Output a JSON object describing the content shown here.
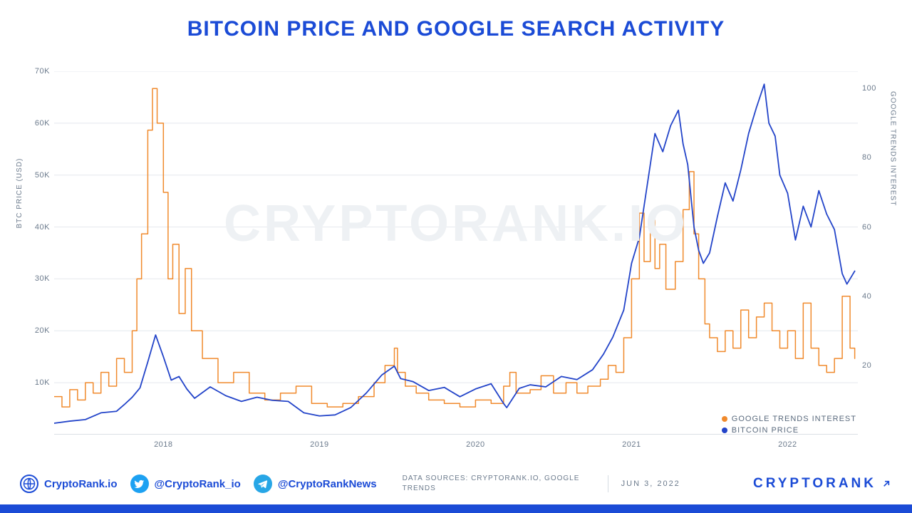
{
  "title": {
    "text": "BITCOIN PRICE AND GOOGLE SEARCH ACTIVITY",
    "color": "#1b4bd6",
    "fontsize": 30
  },
  "chart": {
    "type": "dual-axis-line",
    "watermark": "CRYPTORANK.IO",
    "background": "#ffffff",
    "grid_color": "#e4e8ed",
    "x_range": [
      2017.3,
      2022.45
    ],
    "x_ticks": [
      2018,
      2019,
      2020,
      2021,
      2022
    ],
    "y_left": {
      "label": "BTC PRICE (USD)",
      "min": 0,
      "max": 70000,
      "ticks": [
        10000,
        20000,
        30000,
        40000,
        50000,
        60000,
        70000
      ],
      "tick_labels": [
        "10K",
        "20K",
        "30K",
        "40K",
        "50K",
        "60K",
        "70K"
      ]
    },
    "y_right": {
      "label": "GOOGLE TRENDS INTEREST",
      "min": 0,
      "max": 105,
      "ticks": [
        20,
        40,
        60,
        80,
        100
      ]
    },
    "series": {
      "google_trends": {
        "label": "GOOGLE TRENDS INTEREST",
        "color": "#f08a2c",
        "line_width": 1.5,
        "step": true,
        "axis": "right",
        "points": [
          [
            2017.3,
            11
          ],
          [
            2017.35,
            8
          ],
          [
            2017.4,
            13
          ],
          [
            2017.45,
            10
          ],
          [
            2017.5,
            15
          ],
          [
            2017.55,
            12
          ],
          [
            2017.6,
            18
          ],
          [
            2017.65,
            14
          ],
          [
            2017.7,
            22
          ],
          [
            2017.75,
            18
          ],
          [
            2017.8,
            30
          ],
          [
            2017.83,
            45
          ],
          [
            2017.86,
            58
          ],
          [
            2017.9,
            88
          ],
          [
            2017.93,
            100
          ],
          [
            2017.96,
            90
          ],
          [
            2018.0,
            70
          ],
          [
            2018.03,
            45
          ],
          [
            2018.06,
            55
          ],
          [
            2018.1,
            35
          ],
          [
            2018.14,
            48
          ],
          [
            2018.18,
            30
          ],
          [
            2018.25,
            22
          ],
          [
            2018.35,
            15
          ],
          [
            2018.45,
            18
          ],
          [
            2018.55,
            12
          ],
          [
            2018.65,
            10
          ],
          [
            2018.75,
            12
          ],
          [
            2018.85,
            14
          ],
          [
            2018.95,
            9
          ],
          [
            2019.05,
            8
          ],
          [
            2019.15,
            9
          ],
          [
            2019.25,
            11
          ],
          [
            2019.35,
            15
          ],
          [
            2019.42,
            20
          ],
          [
            2019.48,
            25
          ],
          [
            2019.5,
            18
          ],
          [
            2019.55,
            14
          ],
          [
            2019.62,
            12
          ],
          [
            2019.7,
            10
          ],
          [
            2019.8,
            9
          ],
          [
            2019.9,
            8
          ],
          [
            2020.0,
            10
          ],
          [
            2020.1,
            9
          ],
          [
            2020.18,
            14
          ],
          [
            2020.22,
            18
          ],
          [
            2020.26,
            12
          ],
          [
            2020.35,
            13
          ],
          [
            2020.42,
            17
          ],
          [
            2020.5,
            12
          ],
          [
            2020.58,
            15
          ],
          [
            2020.65,
            12
          ],
          [
            2020.72,
            14
          ],
          [
            2020.8,
            16
          ],
          [
            2020.85,
            20
          ],
          [
            2020.9,
            18
          ],
          [
            2020.95,
            28
          ],
          [
            2021.0,
            45
          ],
          [
            2021.05,
            64
          ],
          [
            2021.08,
            50
          ],
          [
            2021.12,
            62
          ],
          [
            2021.15,
            48
          ],
          [
            2021.18,
            55
          ],
          [
            2021.22,
            42
          ],
          [
            2021.28,
            50
          ],
          [
            2021.33,
            65
          ],
          [
            2021.37,
            76
          ],
          [
            2021.4,
            58
          ],
          [
            2021.43,
            45
          ],
          [
            2021.47,
            32
          ],
          [
            2021.5,
            28
          ],
          [
            2021.55,
            24
          ],
          [
            2021.6,
            30
          ],
          [
            2021.65,
            25
          ],
          [
            2021.7,
            36
          ],
          [
            2021.75,
            28
          ],
          [
            2021.8,
            34
          ],
          [
            2021.85,
            38
          ],
          [
            2021.9,
            30
          ],
          [
            2021.95,
            25
          ],
          [
            2022.0,
            30
          ],
          [
            2022.05,
            22
          ],
          [
            2022.1,
            38
          ],
          [
            2022.15,
            25
          ],
          [
            2022.2,
            20
          ],
          [
            2022.25,
            18
          ],
          [
            2022.3,
            22
          ],
          [
            2022.35,
            40
          ],
          [
            2022.4,
            25
          ],
          [
            2022.43,
            22
          ]
        ]
      },
      "btc_price": {
        "label": "BITCOIN PRICE",
        "color": "#2344c9",
        "line_width": 1.8,
        "step": false,
        "axis": "left",
        "points": [
          [
            2017.3,
            2200
          ],
          [
            2017.4,
            2600
          ],
          [
            2017.5,
            2900
          ],
          [
            2017.6,
            4200
          ],
          [
            2017.7,
            4500
          ],
          [
            2017.75,
            5800
          ],
          [
            2017.8,
            7200
          ],
          [
            2017.85,
            9000
          ],
          [
            2017.9,
            14000
          ],
          [
            2017.95,
            19200
          ],
          [
            2018.0,
            15000
          ],
          [
            2018.05,
            10500
          ],
          [
            2018.1,
            11200
          ],
          [
            2018.15,
            8800
          ],
          [
            2018.2,
            7000
          ],
          [
            2018.3,
            9200
          ],
          [
            2018.4,
            7500
          ],
          [
            2018.5,
            6400
          ],
          [
            2018.6,
            7200
          ],
          [
            2018.7,
            6600
          ],
          [
            2018.8,
            6400
          ],
          [
            2018.9,
            4200
          ],
          [
            2019.0,
            3600
          ],
          [
            2019.1,
            3800
          ],
          [
            2019.2,
            5200
          ],
          [
            2019.3,
            8000
          ],
          [
            2019.4,
            11500
          ],
          [
            2019.48,
            13200
          ],
          [
            2019.52,
            10800
          ],
          [
            2019.6,
            10200
          ],
          [
            2019.7,
            8500
          ],
          [
            2019.8,
            9100
          ],
          [
            2019.9,
            7300
          ],
          [
            2020.0,
            8800
          ],
          [
            2020.1,
            9800
          ],
          [
            2020.18,
            6000
          ],
          [
            2020.2,
            5200
          ],
          [
            2020.28,
            8900
          ],
          [
            2020.35,
            9600
          ],
          [
            2020.45,
            9200
          ],
          [
            2020.55,
            11200
          ],
          [
            2020.65,
            10600
          ],
          [
            2020.75,
            12500
          ],
          [
            2020.82,
            15500
          ],
          [
            2020.88,
            18800
          ],
          [
            2020.95,
            24000
          ],
          [
            2021.0,
            33000
          ],
          [
            2021.05,
            38000
          ],
          [
            2021.1,
            48000
          ],
          [
            2021.15,
            58000
          ],
          [
            2021.2,
            54500
          ],
          [
            2021.25,
            59500
          ],
          [
            2021.3,
            62500
          ],
          [
            2021.33,
            56000
          ],
          [
            2021.36,
            52000
          ],
          [
            2021.4,
            40000
          ],
          [
            2021.43,
            35500
          ],
          [
            2021.46,
            33000
          ],
          [
            2021.5,
            35000
          ],
          [
            2021.55,
            42000
          ],
          [
            2021.6,
            48500
          ],
          [
            2021.65,
            45000
          ],
          [
            2021.7,
            51000
          ],
          [
            2021.75,
            58000
          ],
          [
            2021.8,
            63000
          ],
          [
            2021.85,
            67500
          ],
          [
            2021.88,
            60000
          ],
          [
            2021.92,
            57500
          ],
          [
            2021.95,
            50000
          ],
          [
            2022.0,
            46500
          ],
          [
            2022.05,
            37500
          ],
          [
            2022.1,
            44000
          ],
          [
            2022.15,
            40000
          ],
          [
            2022.2,
            47000
          ],
          [
            2022.25,
            42500
          ],
          [
            2022.3,
            39500
          ],
          [
            2022.35,
            31000
          ],
          [
            2022.38,
            29000
          ],
          [
            2022.43,
            31500
          ]
        ]
      }
    },
    "legend": [
      {
        "key": "google_trends"
      },
      {
        "key": "btc_price"
      }
    ]
  },
  "footer": {
    "links": [
      {
        "icon": "globe",
        "label": "CryptoRank.io"
      },
      {
        "icon": "twitter",
        "label": "@CryptoRank_io",
        "bg": "#1da1f2"
      },
      {
        "icon": "telegram",
        "label": "@CryptoRankNews",
        "bg": "#27a6e6"
      }
    ],
    "sources_label": "DATA SOURCES: CRYPTORANK.IO, GOOGLE TRENDS",
    "date": "JUN 3, 2022",
    "brand": "CRYPTORANK"
  }
}
